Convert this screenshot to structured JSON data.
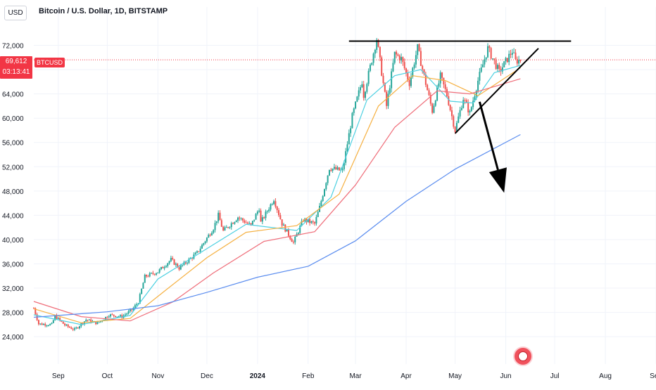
{
  "header": {
    "currency": "USD",
    "title": "Bitcoin / U.S. Dollar, 1D, BITSTAMP"
  },
  "price_label": {
    "price": "69,612",
    "countdown": "03:13:41",
    "symbol": "BTCUSD"
  },
  "colors": {
    "up": "#26a69a",
    "down": "#ef5350",
    "ma_fast": "#4dd0e1",
    "ma_mid": "#f5b041",
    "ma_slow": "#ef6d79",
    "ma_long": "#5b8def",
    "annotation": "#000000",
    "price_line": "#f23645",
    "grid": "#f0f3fa"
  },
  "chart_data": {
    "type": "candlestick",
    "y_ticks": [
      "24,000",
      "28,000",
      "32,000",
      "36,000",
      "40,000",
      "44,000",
      "48,000",
      "52,000",
      "56,000",
      "60,000",
      "64,000",
      "68,000",
      "72,000"
    ],
    "y_tick_values": [
      24000,
      28000,
      32000,
      36000,
      40000,
      44000,
      48000,
      52000,
      56000,
      60000,
      64000,
      68000,
      72000
    ],
    "ylim": [
      19500,
      76000
    ],
    "x_ticks": [
      "Sep",
      "Oct",
      "Nov",
      "Dec",
      "2024",
      "Feb",
      "Mar",
      "Apr",
      "May",
      "Jun",
      "Jul",
      "Aug",
      "Sep"
    ],
    "x_tick_dates": [
      "2023-09-01",
      "2023-10-01",
      "2023-11-01",
      "2023-12-01",
      "2024-01-01",
      "2024-02-01",
      "2024-03-01",
      "2024-04-01",
      "2024-05-01",
      "2024-06-01",
      "2024-07-01",
      "2024-08-01",
      "2024-09-01"
    ],
    "xlim": [
      "2023-08-17",
      "2024-09-01"
    ],
    "last_price": 69612,
    "price_path": [
      [
        "2023-08-17",
        28700
      ],
      [
        "2023-08-20",
        26100
      ],
      [
        "2023-08-28",
        26000
      ],
      [
        "2023-08-30",
        27400
      ],
      [
        "2023-09-05",
        25900
      ],
      [
        "2023-09-11",
        25150
      ],
      [
        "2023-09-18",
        26800
      ],
      [
        "2023-09-25",
        26200
      ],
      [
        "2023-10-02",
        27600
      ],
      [
        "2023-10-10",
        27300
      ],
      [
        "2023-10-16",
        28400
      ],
      [
        "2023-10-20",
        29700
      ],
      [
        "2023-10-24",
        33900
      ],
      [
        "2023-11-01",
        34700
      ],
      [
        "2023-11-09",
        36700
      ],
      [
        "2023-11-14",
        35300
      ],
      [
        "2023-11-25",
        37800
      ],
      [
        "2023-12-05",
        41900
      ],
      [
        "2023-12-08",
        44000
      ],
      [
        "2023-12-11",
        41400
      ],
      [
        "2023-12-20",
        43700
      ],
      [
        "2023-12-28",
        42300
      ],
      [
        "2024-01-02",
        45200
      ],
      [
        "2024-01-03",
        42800
      ],
      [
        "2024-01-11",
        46700
      ],
      [
        "2024-01-16",
        42600
      ],
      [
        "2024-01-23",
        39500
      ],
      [
        "2024-01-29",
        43300
      ],
      [
        "2024-02-05",
        42600
      ],
      [
        "2024-02-08",
        45300
      ],
      [
        "2024-02-14",
        51800
      ],
      [
        "2024-02-22",
        51300
      ],
      [
        "2024-02-28",
        60300
      ],
      [
        "2024-03-05",
        66100
      ],
      [
        "2024-03-06",
        63800
      ],
      [
        "2024-03-14",
        73100
      ],
      [
        "2024-03-20",
        62000
      ],
      [
        "2024-03-25",
        70600
      ],
      [
        "2024-03-29",
        69800
      ],
      [
        "2024-04-03",
        65800
      ],
      [
        "2024-04-08",
        71600
      ],
      [
        "2024-04-12",
        66900
      ],
      [
        "2024-04-17",
        61200
      ],
      [
        "2024-04-22",
        66900
      ],
      [
        "2024-04-26",
        63800
      ],
      [
        "2024-05-01",
        58000
      ],
      [
        "2024-05-06",
        63300
      ],
      [
        "2024-05-10",
        60800
      ],
      [
        "2024-05-15",
        66200
      ],
      [
        "2024-05-21",
        71500
      ],
      [
        "2024-05-28",
        67600
      ],
      [
        "2024-06-05",
        71100
      ],
      [
        "2024-06-07",
        69400
      ],
      [
        "2024-06-10",
        69612
      ]
    ],
    "ma_series": [
      {
        "key": "ma_fast",
        "points": [
          [
            "2023-08-17",
            27600
          ],
          [
            "2023-09-15",
            26000
          ],
          [
            "2023-10-15",
            27500
          ],
          [
            "2023-11-01",
            33500
          ],
          [
            "2023-12-01",
            38500
          ],
          [
            "2023-12-25",
            42500
          ],
          [
            "2024-01-25",
            41500
          ],
          [
            "2024-02-15",
            47000
          ],
          [
            "2024-03-08",
            63000
          ],
          [
            "2024-03-25",
            67000
          ],
          [
            "2024-04-10",
            68000
          ],
          [
            "2024-04-28",
            62800
          ],
          [
            "2024-05-12",
            62500
          ],
          [
            "2024-05-25",
            67500
          ],
          [
            "2024-06-10",
            68700
          ]
        ]
      },
      {
        "key": "ma_mid",
        "points": [
          [
            "2023-08-17",
            28600
          ],
          [
            "2023-09-15",
            26300
          ],
          [
            "2023-10-15",
            27000
          ],
          [
            "2023-11-05",
            31500
          ],
          [
            "2023-12-01",
            37000
          ],
          [
            "2023-12-25",
            41200
          ],
          [
            "2024-01-25",
            42300
          ],
          [
            "2024-02-20",
            47500
          ],
          [
            "2024-03-15",
            62000
          ],
          [
            "2024-04-05",
            67000
          ],
          [
            "2024-04-25",
            66200
          ],
          [
            "2024-05-15",
            63700
          ],
          [
            "2024-06-10",
            68300
          ]
        ]
      },
      {
        "key": "ma_slow",
        "points": [
          [
            "2023-08-17",
            29800
          ],
          [
            "2023-09-15",
            27300
          ],
          [
            "2023-10-15",
            26600
          ],
          [
            "2023-11-10",
            29700
          ],
          [
            "2023-12-05",
            34500
          ],
          [
            "2024-01-05",
            39700
          ],
          [
            "2024-02-05",
            41300
          ],
          [
            "2024-03-01",
            49000
          ],
          [
            "2024-03-25",
            58500
          ],
          [
            "2024-04-20",
            64500
          ],
          [
            "2024-05-10",
            64000
          ],
          [
            "2024-06-10",
            66500
          ]
        ]
      },
      {
        "key": "ma_long",
        "points": [
          [
            "2023-08-17",
            27200
          ],
          [
            "2023-10-01",
            28100
          ],
          [
            "2023-11-01",
            29100
          ],
          [
            "2023-12-01",
            31300
          ],
          [
            "2024-01-01",
            33800
          ],
          [
            "2024-02-01",
            35600
          ],
          [
            "2024-03-01",
            39800
          ],
          [
            "2024-04-01",
            46300
          ],
          [
            "2024-05-01",
            51600
          ],
          [
            "2024-06-10",
            57300
          ]
        ]
      }
    ],
    "annotations": {
      "resistance": {
        "from": [
          "2024-02-26",
          72700
        ],
        "to": [
          "2024-07-11",
          72700
        ]
      },
      "support": {
        "from": [
          "2024-05-01",
          57500
        ],
        "to": [
          "2024-06-21",
          71500
        ]
      },
      "arrow": {
        "from": [
          "2024-05-16",
          62700
        ],
        "to": [
          "2024-05-31",
          47700
        ]
      }
    }
  }
}
